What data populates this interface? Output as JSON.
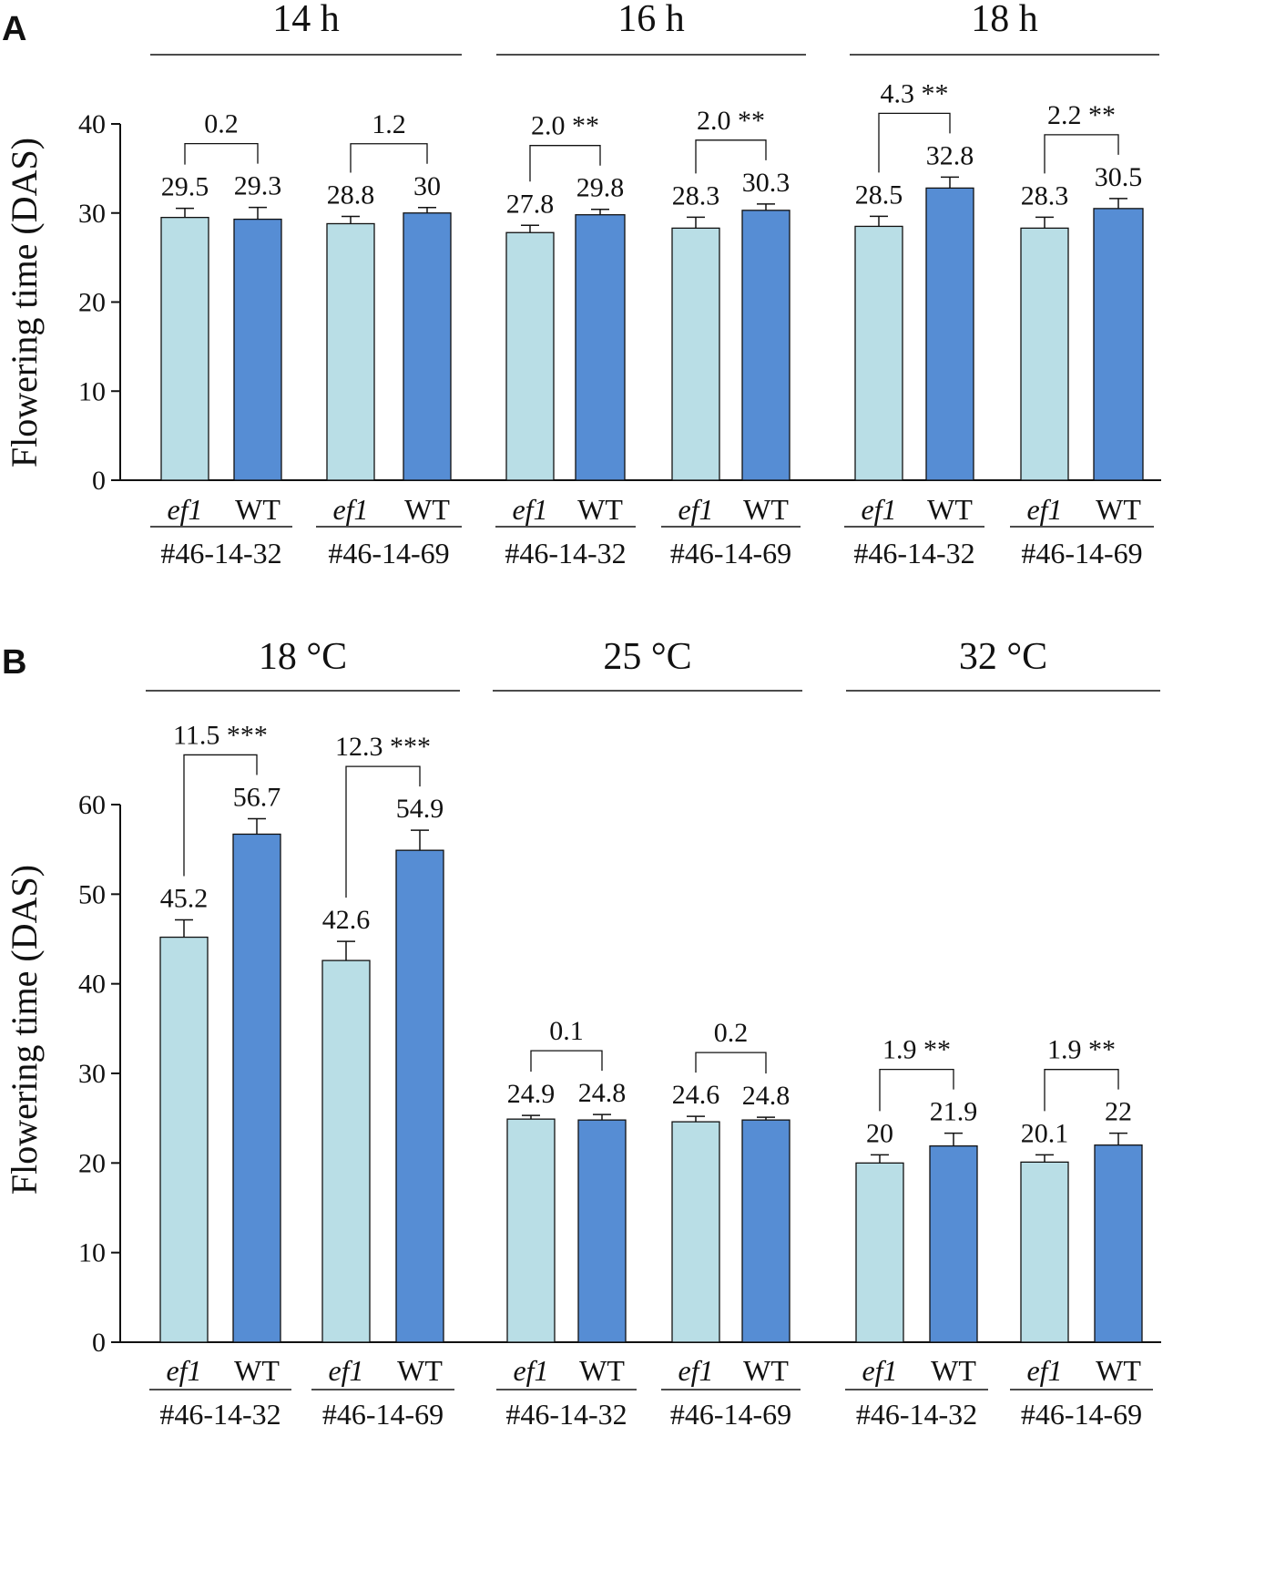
{
  "chart_data": [
    {
      "panel": "A",
      "type": "bar",
      "ylabel": "Flowering time (DAS)",
      "ylim": [
        0,
        40
      ],
      "yticks": [
        0,
        10,
        20,
        30,
        40
      ],
      "conditions": [
        {
          "title": "14 h",
          "lines": [
            {
              "name": "#46-14-32",
              "bars": [
                {
                  "label": "ef1",
                  "value": 29.5
                },
                {
                  "label": "WT",
                  "value": 29.3
                }
              ],
              "diff": "0.2"
            },
            {
              "name": "#46-14-69",
              "bars": [
                {
                  "label": "ef1",
                  "value": 28.8
                },
                {
                  "label": "WT",
                  "value": 30.0
                }
              ],
              "diff": "1.2"
            }
          ]
        },
        {
          "title": "16 h",
          "lines": [
            {
              "name": "#46-14-32",
              "bars": [
                {
                  "label": "ef1",
                  "value": 27.8
                },
                {
                  "label": "WT",
                  "value": 29.8
                }
              ],
              "diff": "2.0 **"
            },
            {
              "name": "#46-14-69",
              "bars": [
                {
                  "label": "ef1",
                  "value": 28.3
                },
                {
                  "label": "WT",
                  "value": 30.3
                }
              ],
              "diff": "2.0 **"
            }
          ]
        },
        {
          "title": "18 h",
          "lines": [
            {
              "name": "#46-14-32",
              "bars": [
                {
                  "label": "ef1",
                  "value": 28.5
                },
                {
                  "label": "WT",
                  "value": 32.8
                }
              ],
              "diff": "4.3 **"
            },
            {
              "name": "#46-14-69",
              "bars": [
                {
                  "label": "ef1",
                  "value": 28.3
                },
                {
                  "label": "WT",
                  "value": 30.5
                }
              ],
              "diff": "2.2 **"
            }
          ]
        }
      ]
    },
    {
      "panel": "B",
      "type": "bar",
      "ylabel": "Flowering time (DAS)",
      "ylim": [
        0,
        60
      ],
      "yticks": [
        0,
        10,
        20,
        30,
        40,
        50,
        60
      ],
      "conditions": [
        {
          "title": "18 °C",
          "lines": [
            {
              "name": "#46-14-32",
              "bars": [
                {
                  "label": "ef1",
                  "value": 45.2
                },
                {
                  "label": "WT",
                  "value": 56.7
                }
              ],
              "diff": "11.5 ***"
            },
            {
              "name": "#46-14-69",
              "bars": [
                {
                  "label": "ef1",
                  "value": 42.6
                },
                {
                  "label": "WT",
                  "value": 54.9
                }
              ],
              "diff": "12.3 ***"
            }
          ]
        },
        {
          "title": "25 °C",
          "lines": [
            {
              "name": "#46-14-32",
              "bars": [
                {
                  "label": "ef1",
                  "value": 24.9
                },
                {
                  "label": "WT",
                  "value": 24.8
                }
              ],
              "diff": "0.1"
            },
            {
              "name": "#46-14-69",
              "bars": [
                {
                  "label": "ef1",
                  "value": 24.6
                },
                {
                  "label": "WT",
                  "value": 24.8
                }
              ],
              "diff": "0.2"
            }
          ]
        },
        {
          "title": "32 °C",
          "lines": [
            {
              "name": "#46-14-32",
              "bars": [
                {
                  "label": "ef1",
                  "value": 20.0
                },
                {
                  "label": "WT",
                  "value": 21.9
                }
              ],
              "diff": "1.9 **"
            },
            {
              "name": "#46-14-69",
              "bars": [
                {
                  "label": "ef1",
                  "value": 20.1
                },
                {
                  "label": "WT",
                  "value": 22.0
                }
              ],
              "diff": "1.9 **"
            }
          ]
        }
      ]
    }
  ],
  "colors": {
    "ef1": "#b9dee6",
    "WT": "#568dd4",
    "axis": "#111111"
  }
}
